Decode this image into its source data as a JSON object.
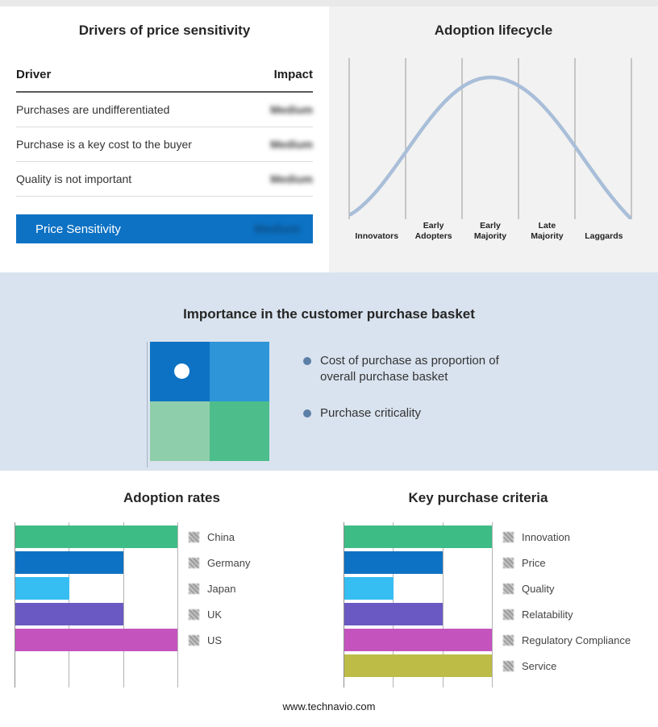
{
  "page": {
    "footer_url": "www.technavio.com"
  },
  "price_sensitivity": {
    "title": "Drivers of price sensitivity",
    "col_driver": "Driver",
    "col_impact": "Impact",
    "rows": [
      {
        "driver": "Purchases are undifferentiated",
        "impact": "Medium"
      },
      {
        "driver": "Purchase is a key cost to the buyer",
        "impact": "Medium"
      },
      {
        "driver": "Quality is not important",
        "impact": "Medium"
      }
    ],
    "summary_label": "Price Sensitivity",
    "summary_impact": "Medium",
    "highlight_color": "#0d72c4"
  },
  "adoption_lifecycle": {
    "title": "Adoption lifecycle",
    "stages": [
      "Innovators",
      "Early Adopters",
      "Early Majority",
      "Late Majority",
      "Laggards"
    ],
    "curve_color": "#a9bed8"
  },
  "purchase_basket": {
    "title": "Importance in the customer purchase basket",
    "bullets": [
      "Cost of purchase as proportion of overall purchase basket",
      "Purchase criticality"
    ],
    "quadrant_colors": {
      "tl": "#0d72c4",
      "tr": "#2e96d8",
      "bl": "#8fceaa",
      "br": "#4cbd8b"
    }
  },
  "chart_data": [
    {
      "type": "line",
      "title": "Adoption lifecycle",
      "x": [
        "Innovators",
        "Early Adopters",
        "Early Majority",
        "Late Majority",
        "Laggards"
      ],
      "values": [
        0.05,
        0.55,
        1.0,
        0.55,
        0.05
      ],
      "ylim": [
        0,
        1
      ],
      "grid": "vertical"
    },
    {
      "type": "bar",
      "title": "Adoption rates",
      "orientation": "horizontal",
      "categories": [
        "China",
        "Germany",
        "Japan",
        "UK",
        "US"
      ],
      "values": [
        3,
        2,
        1,
        2,
        3
      ],
      "colors": [
        "#3dbc86",
        "#0d72c4",
        "#36bdf2",
        "#6b59c3",
        "#c553be"
      ],
      "xlim": [
        0,
        3
      ],
      "legend_position": "right"
    },
    {
      "type": "bar",
      "title": "Key purchase criteria",
      "orientation": "horizontal",
      "categories": [
        "Innovation",
        "Price",
        "Quality",
        "Relatability",
        "Regulatory Compliance",
        "Service"
      ],
      "values": [
        3,
        2,
        1,
        2,
        3,
        3
      ],
      "colors": [
        "#3dbc86",
        "#0d72c4",
        "#36bdf2",
        "#6b59c3",
        "#c553be",
        "#bcbc46"
      ],
      "xlim": [
        0,
        3
      ],
      "legend_position": "right"
    }
  ]
}
